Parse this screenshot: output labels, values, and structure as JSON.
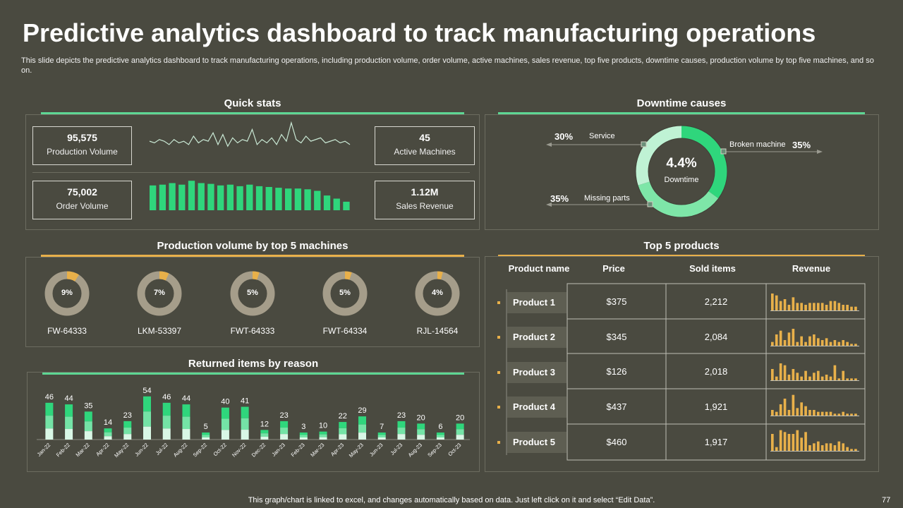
{
  "title": "Predictive analytics dashboard to track manufacturing operations",
  "subtitle": "This slide depicts the predictive analytics dashboard to track manufacturing operations, including production volume, order volume, active machines, sales revenue, top five products, downtime causes, production volume by top five machines, and so on.",
  "quick_stats": {
    "heading": "Quick stats",
    "production_volume": {
      "value": "95,575",
      "label": "Production Volume"
    },
    "active_machines": {
      "value": "45",
      "label": "Active Machines"
    },
    "order_volume": {
      "value": "75,002",
      "label": "Order Volume"
    },
    "sales_revenue": {
      "value": "1.12M",
      "label": "Sales Revenue"
    },
    "sparkline": [
      5,
      4,
      6,
      5,
      3,
      6,
      4,
      5,
      3,
      8,
      4,
      6,
      5,
      10,
      3,
      9,
      2,
      7,
      4,
      6,
      5,
      12,
      3,
      6,
      4,
      7,
      3,
      9,
      5,
      16,
      6,
      4,
      8,
      5,
      6,
      7,
      4,
      5,
      6,
      4,
      5,
      3
    ],
    "bars": [
      32,
      33,
      35,
      33,
      38,
      35,
      34,
      32,
      33,
      31,
      33,
      31,
      30,
      29,
      28,
      28,
      27,
      25,
      19,
      15,
      11
    ]
  },
  "downtime": {
    "heading": "Downtime causes",
    "center_value": "4.4%",
    "center_label": "Downtime",
    "service_pct": "30%",
    "service_label": "Service",
    "missing_pct": "35%",
    "missing_label": "Missing parts",
    "broken_label": "Broken machine",
    "broken_pct": "35%",
    "slices": [
      35,
      35,
      30
    ],
    "colors": [
      "#2fd67c",
      "#7ee6a8",
      "#bff2d4"
    ]
  },
  "machines": {
    "heading": "Production volume by top 5 machines",
    "items": [
      {
        "name": "FW-64333",
        "pct_label": "9%",
        "value": 9
      },
      {
        "name": "LKM-53397",
        "pct_label": "7%",
        "value": 7
      },
      {
        "name": "FWT-64333",
        "pct_label": "5%",
        "value": 5
      },
      {
        "name": "FWT-64334",
        "pct_label": "5%",
        "value": 5
      },
      {
        "name": "RJL-14564",
        "pct_label": "4%",
        "value": 4
      }
    ]
  },
  "returned": {
    "heading": "Returned items by reason"
  },
  "chart_data": {
    "type": "bar",
    "title": "Returned items by reason",
    "categories": [
      "Jan-22",
      "Feb-22",
      "Mar-22",
      "Apr-22",
      "May-22",
      "Jun-22",
      "Jul-22",
      "Aug-22",
      "Sep-22",
      "Oct-22",
      "Nov-22",
      "Dec-22",
      "Jan-23",
      "Feb-23",
      "Mar-23",
      "Apr-23",
      "May-23",
      "Jun-23",
      "Jul-23",
      "Aug-23",
      "Sep-23",
      "Oct-23"
    ],
    "values": [
      46,
      44,
      35,
      14,
      23,
      54,
      46,
      44,
      5,
      40,
      41,
      12,
      23,
      3,
      10,
      22,
      29,
      7,
      23,
      20,
      6,
      20
    ],
    "ylim": [
      0,
      60
    ]
  },
  "products": {
    "heading": "Top 5 products",
    "headers": {
      "name": "Product name",
      "price": "Price",
      "sold": "Sold items",
      "revenue": "Revenue"
    },
    "rows": [
      {
        "name": "Product 1",
        "price": "$375",
        "sold": "2,212",
        "spark": [
          9,
          8,
          5,
          6,
          3,
          7,
          4,
          4,
          3,
          4,
          4,
          4,
          4,
          3,
          5,
          5,
          4,
          3,
          3,
          2,
          2
        ]
      },
      {
        "name": "Product 2",
        "price": "$345",
        "sold": "2,084",
        "spark": [
          2,
          6,
          8,
          3,
          7,
          9,
          2,
          5,
          2,
          5,
          6,
          4,
          3,
          4,
          2,
          3,
          2,
          3,
          2,
          1,
          1
        ]
      },
      {
        "name": "Product 3",
        "price": "$126",
        "sold": "2,018",
        "spark": [
          6,
          2,
          9,
          8,
          3,
          6,
          4,
          2,
          5,
          2,
          4,
          5,
          2,
          3,
          2,
          8,
          1,
          5,
          1,
          1,
          1
        ]
      },
      {
        "name": "Product 4",
        "price": "$437",
        "sold": "1,921",
        "spark": [
          3,
          2,
          6,
          9,
          3,
          11,
          4,
          7,
          5,
          3,
          3,
          2,
          2,
          2,
          2,
          1,
          1,
          2,
          1,
          1,
          1
        ]
      },
      {
        "name": "Product 5",
        "price": "$460",
        "sold": "1,917",
        "spark": [
          9,
          2,
          11,
          10,
          9,
          9,
          11,
          7,
          10,
          3,
          4,
          5,
          3,
          4,
          4,
          3,
          5,
          4,
          2,
          1,
          1
        ]
      }
    ]
  },
  "footer": {
    "note": "This graph/chart is linked to excel, and changes automatically based on data. Just left click on it and select “Edit Data”.",
    "page": "77"
  },
  "colors": {
    "background": "#4a4a40",
    "green": "#2fd67c",
    "yellow": "#e8b04a",
    "ring_gray": "#a59d8a"
  }
}
